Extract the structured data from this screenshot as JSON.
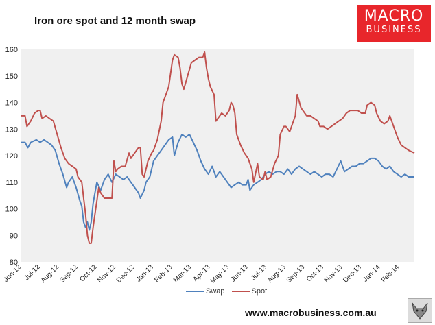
{
  "title": "Iron ore spot and 12 month swap",
  "logo": {
    "line1": "MACRO",
    "line2": "BUSINESS"
  },
  "website": "www.macrobusiness.com.au",
  "icons": {
    "wolf": "wolf-logo-icon"
  },
  "colors": {
    "swap": "#4f81bd",
    "spot": "#c0504d",
    "logo_bg": "#e8262b",
    "plot_bg": "#f0f0f0"
  },
  "chart_data": {
    "type": "line",
    "title": "Iron ore spot and 12 month swap",
    "xlabel": "",
    "ylabel": "",
    "ylim": [
      80,
      160
    ],
    "yticks": [
      80,
      90,
      100,
      110,
      120,
      130,
      140,
      150,
      160
    ],
    "categories": [
      "Jun-12",
      "Jul-12",
      "Aug-12",
      "Sep-12",
      "Oct-12",
      "Nov-12",
      "Dec-12",
      "Jan-13",
      "Feb-13",
      "Mar-13",
      "Apr-13",
      "May-13",
      "Jun-13",
      "Jul-13",
      "Aug-13",
      "Sep-13",
      "Oct-13",
      "Nov-13",
      "Dec-13",
      "Jan-14",
      "Feb-14"
    ],
    "x_range": [
      0,
      20.8
    ],
    "grid": false,
    "legend": "bottom-center",
    "series": [
      {
        "name": "Swap",
        "points": [
          [
            0,
            125
          ],
          [
            0.2,
            125
          ],
          [
            0.35,
            123
          ],
          [
            0.5,
            125
          ],
          [
            0.8,
            126
          ],
          [
            1.0,
            125
          ],
          [
            1.2,
            126
          ],
          [
            1.4,
            125
          ],
          [
            1.6,
            124
          ],
          [
            1.8,
            122
          ],
          [
            2.0,
            117
          ],
          [
            2.2,
            113
          ],
          [
            2.4,
            108
          ],
          [
            2.5,
            110
          ],
          [
            2.7,
            112
          ],
          [
            2.9,
            108
          ],
          [
            3.1,
            103
          ],
          [
            3.2,
            101
          ],
          [
            3.3,
            95
          ],
          [
            3.4,
            93
          ],
          [
            3.5,
            95
          ],
          [
            3.6,
            92
          ],
          [
            3.7,
            95
          ],
          [
            3.8,
            102
          ],
          [
            3.9,
            106
          ],
          [
            4.0,
            110
          ],
          [
            4.2,
            107
          ],
          [
            4.4,
            111
          ],
          [
            4.6,
            113
          ],
          [
            4.8,
            110
          ],
          [
            5.0,
            113
          ],
          [
            5.2,
            112
          ],
          [
            5.4,
            111
          ],
          [
            5.6,
            112
          ],
          [
            5.8,
            110
          ],
          [
            6.0,
            108
          ],
          [
            6.2,
            106
          ],
          [
            6.3,
            104
          ],
          [
            6.5,
            107
          ],
          [
            6.6,
            110
          ],
          [
            6.8,
            112
          ],
          [
            7.0,
            118
          ],
          [
            7.2,
            120
          ],
          [
            7.4,
            122
          ],
          [
            7.6,
            124
          ],
          [
            7.8,
            126
          ],
          [
            8.0,
            127
          ],
          [
            8.1,
            120
          ],
          [
            8.3,
            125
          ],
          [
            8.5,
            128
          ],
          [
            8.7,
            127
          ],
          [
            8.9,
            128
          ],
          [
            9.1,
            125
          ],
          [
            9.3,
            122
          ],
          [
            9.5,
            118
          ],
          [
            9.7,
            115
          ],
          [
            9.9,
            113
          ],
          [
            10.1,
            116
          ],
          [
            10.3,
            112
          ],
          [
            10.5,
            114
          ],
          [
            10.7,
            112
          ],
          [
            10.9,
            110
          ],
          [
            11.1,
            108
          ],
          [
            11.3,
            109
          ],
          [
            11.5,
            110
          ],
          [
            11.7,
            109
          ],
          [
            11.9,
            109
          ],
          [
            12.0,
            111
          ],
          [
            12.1,
            107
          ],
          [
            12.3,
            109
          ],
          [
            12.5,
            110
          ],
          [
            12.7,
            111
          ],
          [
            12.9,
            113
          ],
          [
            13.1,
            114
          ],
          [
            13.3,
            113
          ],
          [
            13.5,
            114
          ],
          [
            13.7,
            114
          ],
          [
            13.9,
            113
          ],
          [
            14.1,
            115
          ],
          [
            14.3,
            113
          ],
          [
            14.5,
            115
          ],
          [
            14.7,
            116
          ],
          [
            14.9,
            115
          ],
          [
            15.1,
            114
          ],
          [
            15.3,
            113
          ],
          [
            15.5,
            114
          ],
          [
            15.7,
            113
          ],
          [
            15.9,
            112
          ],
          [
            16.1,
            113
          ],
          [
            16.3,
            113
          ],
          [
            16.5,
            112
          ],
          [
            16.7,
            115
          ],
          [
            16.9,
            118
          ],
          [
            17.1,
            114
          ],
          [
            17.3,
            115
          ],
          [
            17.5,
            116
          ],
          [
            17.7,
            116
          ],
          [
            17.9,
            117
          ],
          [
            18.1,
            117
          ],
          [
            18.3,
            118
          ],
          [
            18.5,
            119
          ],
          [
            18.7,
            119
          ],
          [
            18.9,
            118
          ],
          [
            19.1,
            116
          ],
          [
            19.3,
            115
          ],
          [
            19.5,
            116
          ],
          [
            19.7,
            114
          ],
          [
            19.9,
            113
          ],
          [
            20.1,
            112
          ],
          [
            20.3,
            113
          ],
          [
            20.5,
            112
          ],
          [
            20.8,
            112
          ]
        ]
      },
      {
        "name": "Spot",
        "points": [
          [
            0,
            135
          ],
          [
            0.2,
            135
          ],
          [
            0.3,
            131
          ],
          [
            0.5,
            133
          ],
          [
            0.7,
            136
          ],
          [
            0.9,
            137
          ],
          [
            1.0,
            137
          ],
          [
            1.1,
            134
          ],
          [
            1.3,
            135
          ],
          [
            1.5,
            134
          ],
          [
            1.7,
            133
          ],
          [
            1.9,
            128
          ],
          [
            2.1,
            123
          ],
          [
            2.3,
            119
          ],
          [
            2.5,
            117
          ],
          [
            2.7,
            116
          ],
          [
            2.9,
            115
          ],
          [
            3.0,
            112
          ],
          [
            3.2,
            110
          ],
          [
            3.3,
            104
          ],
          [
            3.4,
            98
          ],
          [
            3.5,
            90
          ],
          [
            3.6,
            87
          ],
          [
            3.7,
            87
          ],
          [
            3.8,
            93
          ],
          [
            3.9,
            98
          ],
          [
            4.0,
            103
          ],
          [
            4.1,
            108
          ],
          [
            4.2,
            106
          ],
          [
            4.4,
            104
          ],
          [
            4.6,
            104
          ],
          [
            4.8,
            104
          ],
          [
            4.9,
            118
          ],
          [
            5.0,
            114
          ],
          [
            5.1,
            115
          ],
          [
            5.3,
            116
          ],
          [
            5.5,
            116
          ],
          [
            5.7,
            121
          ],
          [
            5.8,
            119
          ],
          [
            6.0,
            121
          ],
          [
            6.2,
            123
          ],
          [
            6.3,
            123
          ],
          [
            6.4,
            113
          ],
          [
            6.5,
            112
          ],
          [
            6.7,
            118
          ],
          [
            6.9,
            121
          ],
          [
            7.0,
            122
          ],
          [
            7.2,
            126
          ],
          [
            7.4,
            133
          ],
          [
            7.5,
            140
          ],
          [
            7.6,
            142
          ],
          [
            7.8,
            146
          ],
          [
            8.0,
            156
          ],
          [
            8.1,
            158
          ],
          [
            8.3,
            157
          ],
          [
            8.4,
            153
          ],
          [
            8.5,
            147
          ],
          [
            8.6,
            145
          ],
          [
            8.8,
            150
          ],
          [
            9.0,
            155
          ],
          [
            9.2,
            156
          ],
          [
            9.4,
            157
          ],
          [
            9.6,
            157
          ],
          [
            9.7,
            159
          ],
          [
            9.8,
            153
          ],
          [
            9.9,
            149
          ],
          [
            10.0,
            146
          ],
          [
            10.2,
            143
          ],
          [
            10.3,
            133
          ],
          [
            10.5,
            135
          ],
          [
            10.6,
            136
          ],
          [
            10.8,
            135
          ],
          [
            11.0,
            137
          ],
          [
            11.1,
            140
          ],
          [
            11.2,
            139
          ],
          [
            11.3,
            136
          ],
          [
            11.4,
            128
          ],
          [
            11.6,
            124
          ],
          [
            11.8,
            121
          ],
          [
            12.0,
            119
          ],
          [
            12.2,
            115
          ],
          [
            12.3,
            110
          ],
          [
            12.5,
            117
          ],
          [
            12.6,
            112
          ],
          [
            12.8,
            111
          ],
          [
            12.9,
            114
          ],
          [
            13.0,
            111
          ],
          [
            13.2,
            112
          ],
          [
            13.4,
            117
          ],
          [
            13.6,
            120
          ],
          [
            13.7,
            128
          ],
          [
            13.9,
            131
          ],
          [
            14.0,
            131
          ],
          [
            14.2,
            129
          ],
          [
            14.3,
            131
          ],
          [
            14.5,
            135
          ],
          [
            14.6,
            143
          ],
          [
            14.8,
            138
          ],
          [
            15.0,
            136
          ],
          [
            15.1,
            135
          ],
          [
            15.3,
            135
          ],
          [
            15.5,
            134
          ],
          [
            15.7,
            133
          ],
          [
            15.8,
            131
          ],
          [
            16.0,
            131
          ],
          [
            16.2,
            130
          ],
          [
            16.4,
            131
          ],
          [
            16.6,
            132
          ],
          [
            16.8,
            133
          ],
          [
            17.0,
            134
          ],
          [
            17.2,
            136
          ],
          [
            17.4,
            137
          ],
          [
            17.6,
            137
          ],
          [
            17.8,
            137
          ],
          [
            18.0,
            136
          ],
          [
            18.2,
            136
          ],
          [
            18.3,
            139
          ],
          [
            18.5,
            140
          ],
          [
            18.7,
            139
          ],
          [
            18.8,
            136
          ],
          [
            19.0,
            133
          ],
          [
            19.2,
            132
          ],
          [
            19.4,
            133
          ],
          [
            19.5,
            135
          ],
          [
            19.7,
            131
          ],
          [
            19.9,
            127
          ],
          [
            20.1,
            124
          ],
          [
            20.3,
            123
          ],
          [
            20.5,
            122
          ],
          [
            20.8,
            121
          ]
        ]
      }
    ]
  }
}
